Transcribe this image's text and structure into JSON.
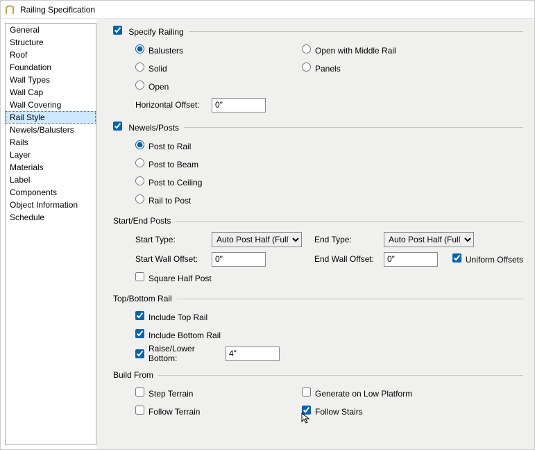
{
  "window": {
    "title": "Railing Specification"
  },
  "sidebar": {
    "items": [
      "General",
      "Structure",
      "Roof",
      "Foundation",
      "Wall Types",
      "Wall Cap",
      "Wall Covering",
      "Rail Style",
      "Newels/Balusters",
      "Rails",
      "Layer",
      "Materials",
      "Label",
      "Components",
      "Object Information",
      "Schedule"
    ],
    "selected": "Rail Style"
  },
  "specifyRailing": {
    "label": "Specify Railing",
    "checked": true,
    "options": {
      "balusters": "Balusters",
      "openMiddle": "Open with Middle Rail",
      "solid": "Solid",
      "panels": "Panels",
      "open": "Open"
    },
    "selected": "balusters",
    "horizontalOffset": {
      "label": "Horizontal Offset:",
      "value": "0\""
    }
  },
  "newelsPosts": {
    "label": "Newels/Posts",
    "checked": true,
    "options": {
      "postToRail": "Post to Rail",
      "postToBeam": "Post to Beam",
      "postToCeiling": "Post to Ceiling",
      "railToPost": "Rail to Post"
    },
    "selected": "postToRail"
  },
  "startEndPosts": {
    "label": "Start/End Posts",
    "startType": {
      "label": "Start Type:",
      "value": "Auto Post Half (Full)"
    },
    "endType": {
      "label": "End Type:",
      "value": "Auto Post Half (Full)"
    },
    "startWallOffset": {
      "label": "Start Wall Offset:",
      "value": "0\""
    },
    "endWallOffset": {
      "label": "End Wall Offset:",
      "value": "0\""
    },
    "uniformOffsets": {
      "label": "Uniform Offsets",
      "checked": true
    },
    "squareHalfPost": {
      "label": "Square Half Post",
      "checked": false
    }
  },
  "topBottomRail": {
    "label": "Top/Bottom Rail",
    "includeTop": {
      "label": "Include Top Rail",
      "checked": true
    },
    "includeBottom": {
      "label": "Include Bottom Rail",
      "checked": true
    },
    "raiseLower": {
      "label": "Raise/Lower Bottom:",
      "checked": true,
      "value": "4\""
    }
  },
  "buildFrom": {
    "label": "Build From",
    "stepTerrain": {
      "label": "Step Terrain",
      "checked": false
    },
    "genLowPlat": {
      "label": "Generate on Low Platform",
      "checked": false
    },
    "followTerrain": {
      "label": "Follow Terrain",
      "checked": false
    },
    "followStairs": {
      "label": "Follow Stairs",
      "checked": true
    }
  },
  "colors": {
    "selection": "#cde8ff",
    "panel": "#f0f0ef",
    "border": "#c5c5c5"
  }
}
